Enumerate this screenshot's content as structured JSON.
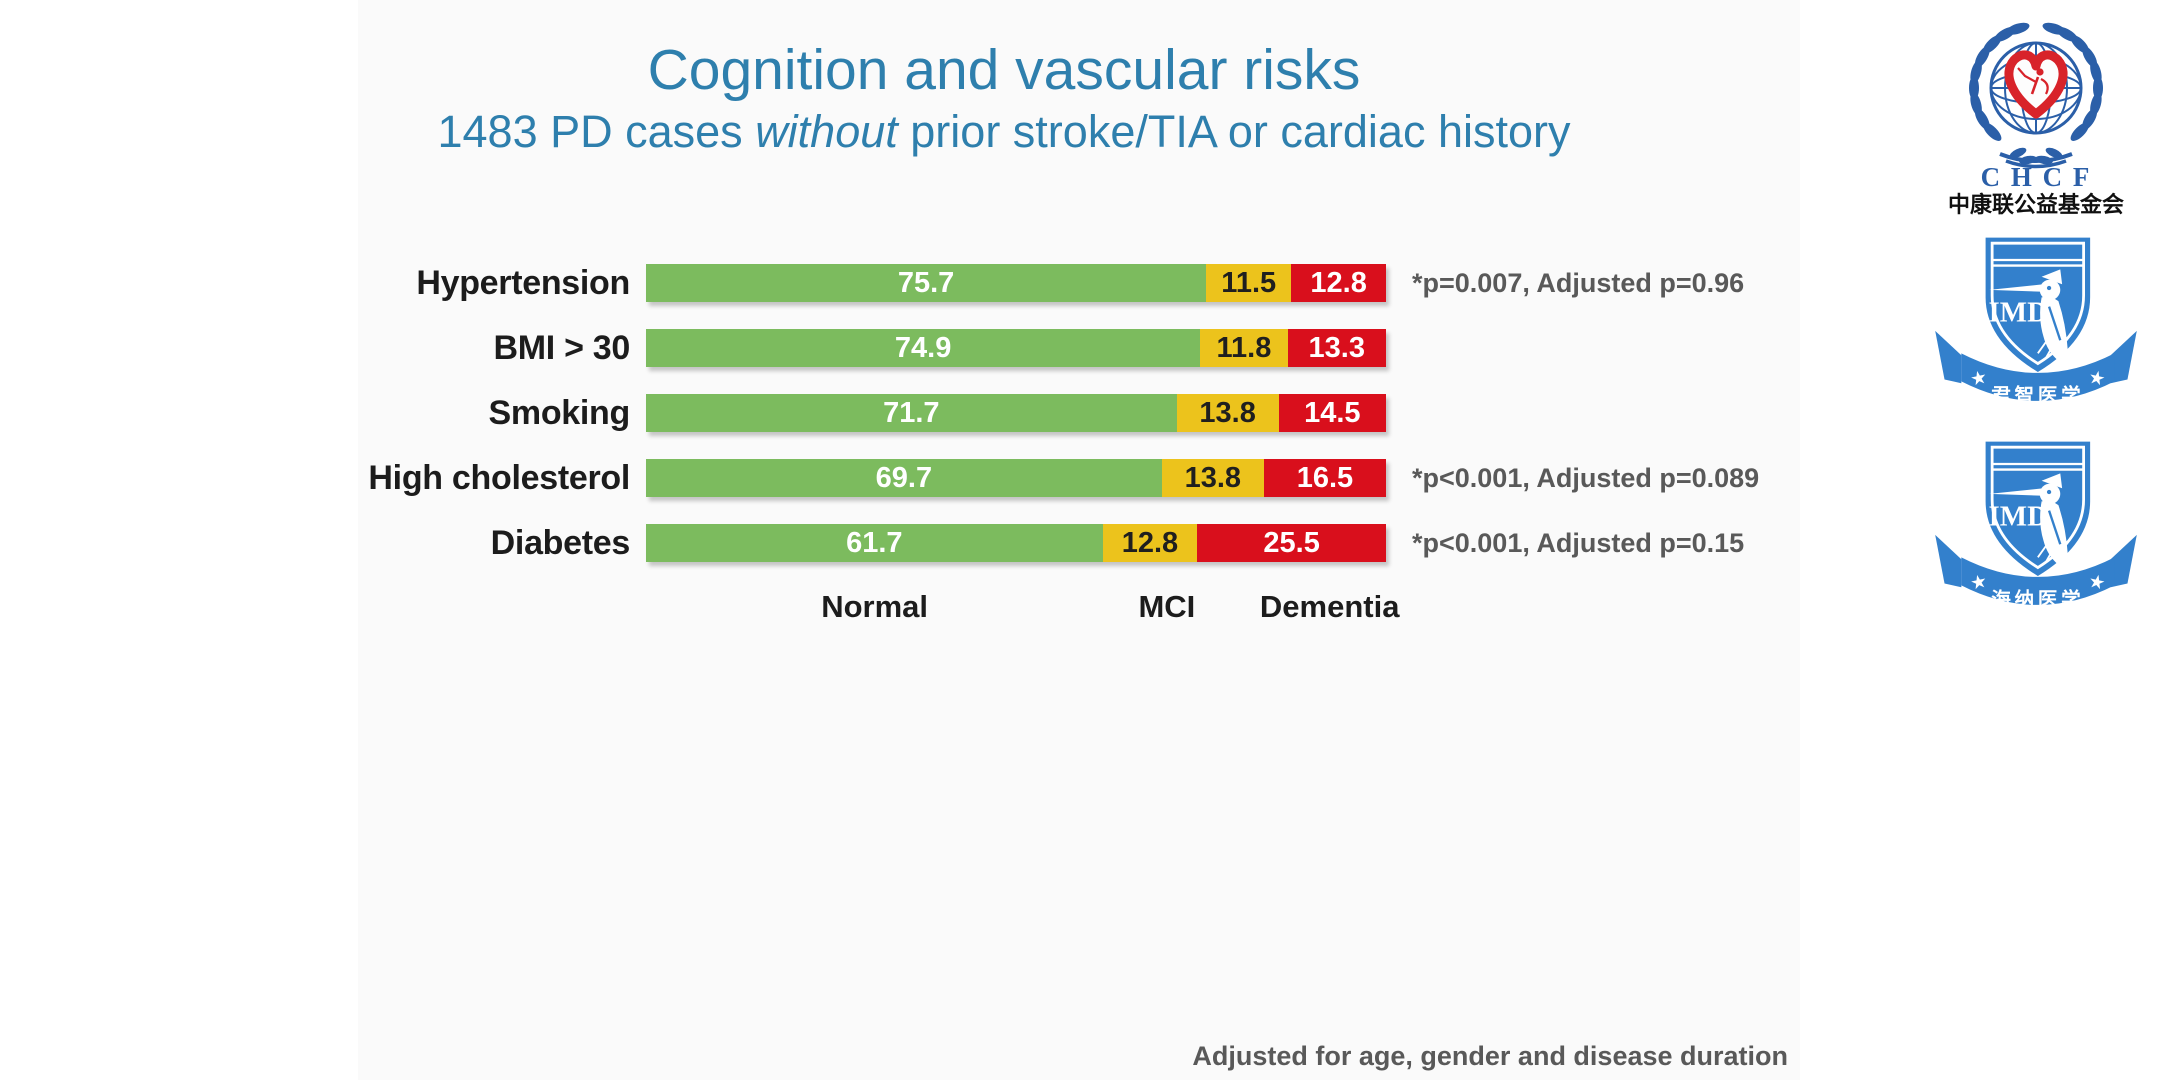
{
  "slide": {
    "title": "Cognition and vascular risks",
    "subtitle_prefix": "1483 PD cases ",
    "subtitle_italic": "without",
    "subtitle_suffix": " prior stroke/TIA or cardiac history",
    "footnote": "Adjusted for age, gender and disease duration",
    "accent_color": "#2E7FAD",
    "background_color": "#FAFAFA"
  },
  "chart_data": {
    "type": "bar",
    "orientation": "horizontal-stacked",
    "unit": "percent",
    "title": "Cognition and vascular risks",
    "categories": [
      "Hypertension",
      "BMI > 30",
      "Smoking",
      "High cholesterol",
      "Diabetes"
    ],
    "series": [
      {
        "name": "Normal",
        "color": "#7CBB5E",
        "text_color": "#FFFFFF",
        "values": [
          75.7,
          74.9,
          71.7,
          69.7,
          61.7
        ]
      },
      {
        "name": "MCI",
        "color": "#ECC31C",
        "text_color": "#1F1F1F",
        "values": [
          11.5,
          11.8,
          13.8,
          13.8,
          12.8
        ]
      },
      {
        "name": "Dementia",
        "color": "#D90F1C",
        "text_color": "#FFFFFF",
        "values": [
          12.8,
          13.3,
          14.5,
          16.5,
          25.5
        ]
      }
    ],
    "annotations": [
      "*p=0.007, Adjusted p=0.96",
      "",
      "",
      "*p<0.001, Adjusted p=0.089",
      "*p<0.001, Adjusted p=0.15"
    ],
    "xlim": [
      0,
      100
    ],
    "grid": false,
    "legend_position": "bottom",
    "legend_positions_pct": [
      29,
      68.5,
      90.5
    ]
  },
  "logos": {
    "chcf": {
      "acronym": "C H C F",
      "name_cn": "中康联公益基金会",
      "globe_color": "#2B5FA8",
      "heart_color": "#D8232A"
    },
    "imd": {
      "acronym": "IMD",
      "shield_color": "#3380CC",
      "star_glyph": "★",
      "ribbons": [
        "君智医学",
        "海纳医学"
      ]
    }
  }
}
